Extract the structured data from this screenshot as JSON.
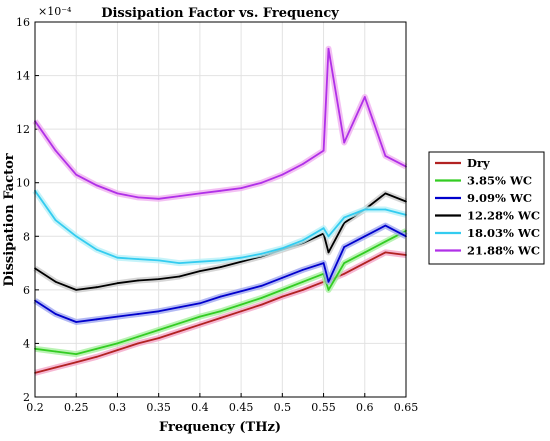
{
  "chart_data": {
    "type": "line",
    "title": "Dissipation Factor vs. Frequency",
    "xlabel": "Frequency (THz)",
    "ylabel": "Dissipation Factor",
    "y_multiplier": "×10⁻⁴",
    "xlim": [
      0.2,
      0.65
    ],
    "ylim": [
      2,
      16
    ],
    "xticks": [
      0.2,
      0.25,
      0.3,
      0.35,
      0.4,
      0.45,
      0.5,
      0.55,
      0.6,
      0.65
    ],
    "xtick_labels": [
      "0.2",
      "0.25",
      "0.3",
      "0.35",
      "0.4",
      "0.45",
      "0.5",
      "0.55",
      "0.6",
      "0.65"
    ],
    "yticks": [
      2,
      4,
      6,
      8,
      10,
      12,
      14,
      16
    ],
    "ytick_labels": [
      "2",
      "4",
      "6",
      "8",
      "10",
      "12",
      "14",
      "16"
    ],
    "grid": true,
    "legend_position": "outside-right",
    "x": [
      0.2,
      0.225,
      0.25,
      0.275,
      0.3,
      0.325,
      0.35,
      0.375,
      0.4,
      0.425,
      0.45,
      0.475,
      0.5,
      0.525,
      0.55,
      0.556,
      0.575,
      0.6,
      0.625,
      0.65
    ],
    "series": [
      {
        "name": "Dry",
        "color": "#b22222",
        "shadow": "#f4a6c8",
        "values": [
          2.9,
          3.1,
          3.3,
          3.5,
          3.75,
          4.0,
          4.2,
          4.45,
          4.7,
          4.95,
          5.2,
          5.45,
          5.75,
          6.0,
          6.3,
          6.35,
          6.6,
          7.0,
          7.4,
          7.3
        ]
      },
      {
        "name": "3.85% WC",
        "color": "#33cc22",
        "shadow": "#a8f0a0",
        "values": [
          3.8,
          3.7,
          3.6,
          3.8,
          4.0,
          4.25,
          4.5,
          4.75,
          5.0,
          5.2,
          5.45,
          5.7,
          6.0,
          6.3,
          6.6,
          6.0,
          7.0,
          7.4,
          7.8,
          8.2
        ]
      },
      {
        "name": "9.09% WC",
        "color": "#0000cc",
        "shadow": "#a0a8f0",
        "values": [
          5.6,
          5.1,
          4.8,
          4.9,
          5.0,
          5.1,
          5.2,
          5.35,
          5.5,
          5.75,
          5.95,
          6.15,
          6.45,
          6.75,
          7.0,
          6.3,
          7.6,
          8.0,
          8.4,
          8.0
        ]
      },
      {
        "name": "12.28% WC",
        "color": "#000000",
        "shadow": "#cccccc",
        "values": [
          6.8,
          6.3,
          6.0,
          6.1,
          6.25,
          6.35,
          6.4,
          6.5,
          6.7,
          6.85,
          7.05,
          7.25,
          7.5,
          7.75,
          8.1,
          7.4,
          8.5,
          9.0,
          9.6,
          9.3
        ]
      },
      {
        "name": "18.03% WC",
        "color": "#33ccf0",
        "shadow": "#b8f0f8",
        "values": [
          9.7,
          8.6,
          8.0,
          7.5,
          7.2,
          7.15,
          7.1,
          7.0,
          7.05,
          7.1,
          7.2,
          7.35,
          7.55,
          7.85,
          8.3,
          8.0,
          8.7,
          9.0,
          9.0,
          8.8
        ]
      },
      {
        "name": "21.88% WC",
        "color": "#b030e8",
        "shadow": "#f0b0f0",
        "values": [
          12.3,
          11.2,
          10.3,
          9.9,
          9.6,
          9.45,
          9.4,
          9.5,
          9.6,
          9.7,
          9.8,
          10.0,
          10.3,
          10.7,
          11.2,
          15.0,
          11.5,
          13.2,
          11.0,
          10.6
        ]
      }
    ]
  }
}
